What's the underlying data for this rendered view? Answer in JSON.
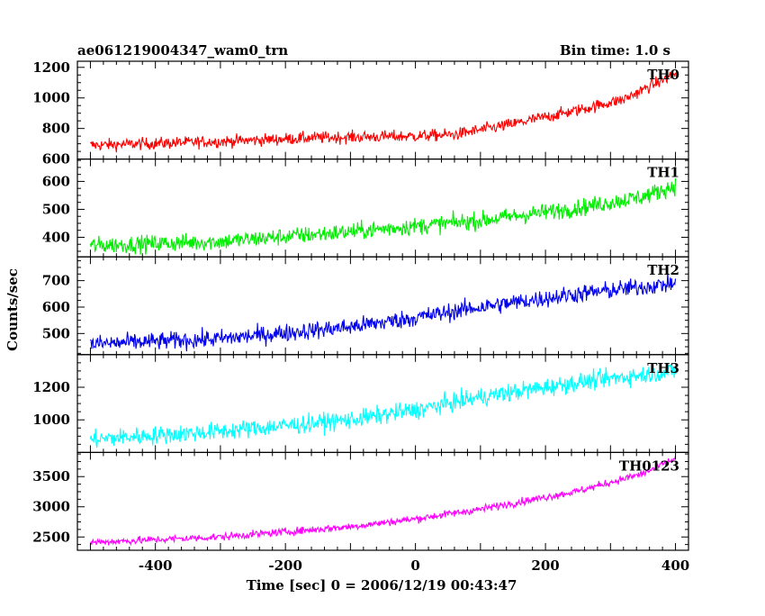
{
  "chart_data": {
    "type": "line",
    "title_left": "ae061219004347_wam0_trn",
    "title_right": "Bin time: 1.0 s",
    "xlabel": "Time [sec] 0 = 2006/12/19 00:43:47",
    "ylabel": "Counts/sec",
    "xlim": [
      -520,
      420
    ],
    "xticks": [
      -400,
      -200,
      0,
      200,
      400
    ],
    "x_start": -500,
    "x_end": 400,
    "panels": [
      {
        "name": "TH0",
        "color": "#ff0000",
        "ylim": [
          600,
          1240
        ],
        "yticks": [
          600,
          800,
          1000,
          1200
        ],
        "trend": [
          [
            -500,
            690
          ],
          [
            -300,
            715
          ],
          [
            -150,
            740
          ],
          [
            0,
            750
          ],
          [
            60,
            760
          ],
          [
            150,
            830
          ],
          [
            250,
            920
          ],
          [
            320,
            990
          ],
          [
            400,
            1160
          ]
        ],
        "noise": 28
      },
      {
        "name": "TH1",
        "color": "#00ee00",
        "ylim": [
          330,
          680
        ],
        "yticks": [
          400,
          500,
          600
        ],
        "trend": [
          [
            -500,
            370
          ],
          [
            -300,
            385
          ],
          [
            -100,
            420
          ],
          [
            100,
            460
          ],
          [
            250,
            505
          ],
          [
            350,
            545
          ],
          [
            400,
            585
          ]
        ],
        "noise": 22
      },
      {
        "name": "TH2",
        "color": "#0000ee",
        "ylim": [
          420,
          790
        ],
        "yticks": [
          500,
          600,
          700
        ],
        "trend": [
          [
            -500,
            460
          ],
          [
            -300,
            480
          ],
          [
            -100,
            525
          ],
          [
            0,
            560
          ],
          [
            100,
            600
          ],
          [
            250,
            650
          ],
          [
            400,
            690
          ]
        ],
        "noise": 24
      },
      {
        "name": "TH3",
        "color": "#00ffff",
        "ylim": [
          800,
          1400
        ],
        "yticks": [
          1000,
          1200
        ],
        "trend": [
          [
            -500,
            880
          ],
          [
            -300,
            930
          ],
          [
            -100,
            1000
          ],
          [
            0,
            1060
          ],
          [
            100,
            1140
          ],
          [
            250,
            1230
          ],
          [
            400,
            1300
          ]
        ],
        "noise": 40
      },
      {
        "name": "TH0123",
        "color": "#ff00ff",
        "ylim": [
          2280,
          3900
        ],
        "yticks": [
          2500,
          3000,
          3500
        ],
        "trend": [
          [
            -500,
            2410
          ],
          [
            -300,
            2500
          ],
          [
            -100,
            2670
          ],
          [
            0,
            2800
          ],
          [
            100,
            2960
          ],
          [
            250,
            3260
          ],
          [
            350,
            3550
          ],
          [
            400,
            3800
          ]
        ],
        "noise": 45
      }
    ]
  }
}
